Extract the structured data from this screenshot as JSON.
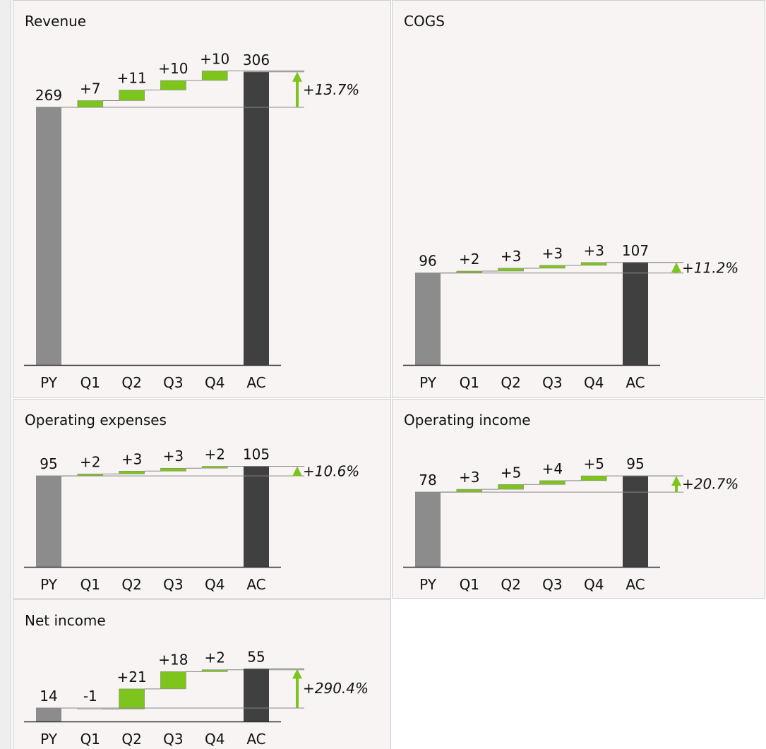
{
  "chart_data": [
    {
      "type": "waterfall",
      "title": "Revenue",
      "categories": [
        "PY",
        "Q1",
        "Q2",
        "Q3",
        "Q4",
        "AC"
      ],
      "values": [
        269,
        7,
        11,
        10,
        10,
        306
      ],
      "value_labels": [
        "269",
        "+7",
        "+11",
        "+10",
        "+10",
        "306"
      ],
      "annotation": "+13.7%",
      "colors": {
        "base": "#8c8c8c",
        "total": "#404040",
        "increase": "#7dc41c",
        "decrease": "#e0e0e0"
      }
    },
    {
      "type": "waterfall",
      "title": "COGS",
      "categories": [
        "PY",
        "Q1",
        "Q2",
        "Q3",
        "Q4",
        "AC"
      ],
      "values": [
        96,
        2,
        3,
        3,
        3,
        107
      ],
      "value_labels": [
        "96",
        "+2",
        "+3",
        "+3",
        "+3",
        "107"
      ],
      "annotation": "+11.2%",
      "colors": {
        "base": "#8c8c8c",
        "total": "#404040",
        "increase": "#7dc41c",
        "decrease": "#e0e0e0"
      }
    },
    {
      "type": "waterfall",
      "title": "Operating expenses",
      "categories": [
        "PY",
        "Q1",
        "Q2",
        "Q3",
        "Q4",
        "AC"
      ],
      "values": [
        95,
        2,
        3,
        3,
        2,
        105
      ],
      "value_labels": [
        "95",
        "+2",
        "+3",
        "+3",
        "+2",
        "105"
      ],
      "annotation": "+10.6%",
      "colors": {
        "base": "#8c8c8c",
        "total": "#404040",
        "increase": "#7dc41c",
        "decrease": "#e0e0e0"
      }
    },
    {
      "type": "waterfall",
      "title": "Operating income",
      "categories": [
        "PY",
        "Q1",
        "Q2",
        "Q3",
        "Q4",
        "AC"
      ],
      "values": [
        78,
        3,
        5,
        4,
        5,
        95
      ],
      "value_labels": [
        "78",
        "+3",
        "+5",
        "+4",
        "+5",
        "95"
      ],
      "annotation": "+20.7%",
      "colors": {
        "base": "#8c8c8c",
        "total": "#404040",
        "increase": "#7dc41c",
        "decrease": "#e0e0e0"
      }
    },
    {
      "type": "waterfall",
      "title": "Net income",
      "categories": [
        "PY",
        "Q1",
        "Q2",
        "Q3",
        "Q4",
        "AC"
      ],
      "values": [
        14,
        -1,
        21,
        18,
        2,
        55
      ],
      "value_labels": [
        "14",
        "-1",
        "+21",
        "+18",
        "+2",
        "55"
      ],
      "annotation": "+290.4%",
      "colors": {
        "base": "#8c8c8c",
        "total": "#404040",
        "increase": "#7dc41c",
        "decrease": "#e0e0e0"
      }
    }
  ]
}
